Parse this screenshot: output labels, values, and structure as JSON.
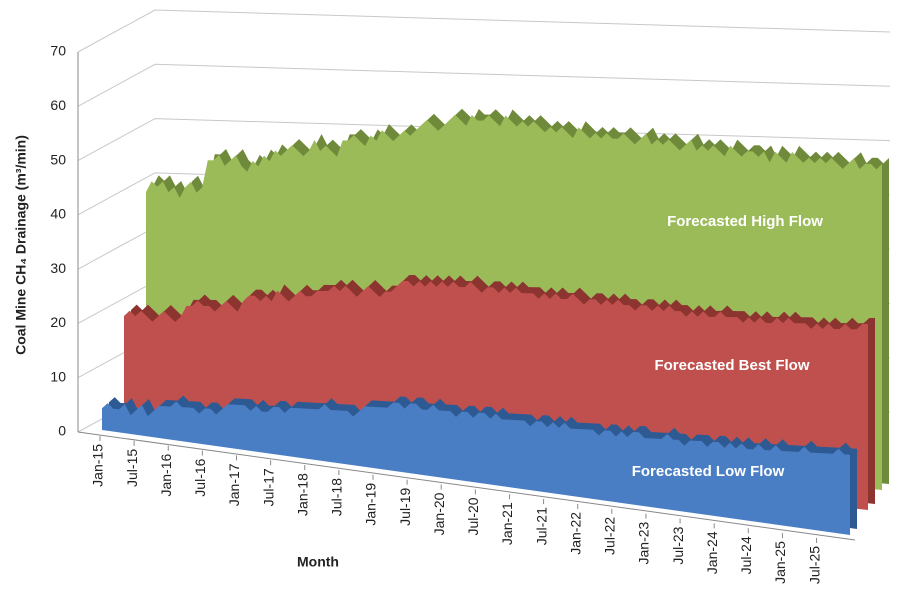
{
  "chart_data": {
    "type": "area3d",
    "y_label": "Coal Mine CH₄ Drainage (m³/min)",
    "x_label": "Month",
    "ylim": [
      0,
      70
    ],
    "yticks": [
      0,
      10,
      20,
      30,
      40,
      50,
      60,
      70
    ],
    "grid": true,
    "categories": [
      "Jan-15",
      null,
      null,
      null,
      null,
      null,
      "Jul-15",
      null,
      null,
      null,
      null,
      null,
      "Jan-16",
      null,
      null,
      null,
      null,
      null,
      "Jul-16",
      null,
      null,
      null,
      null,
      null,
      "Jan-17",
      null,
      null,
      null,
      null,
      null,
      "Jul-17",
      null,
      null,
      null,
      null,
      null,
      "Jan-18",
      null,
      null,
      null,
      null,
      null,
      "Jul-18",
      null,
      null,
      null,
      null,
      null,
      "Jan-19",
      null,
      null,
      null,
      null,
      null,
      "Jul-19",
      null,
      null,
      null,
      null,
      null,
      "Jan-20",
      null,
      null,
      null,
      null,
      null,
      "Jul-20",
      null,
      null,
      null,
      null,
      null,
      "Jan-21",
      null,
      null,
      null,
      null,
      null,
      "Jul-21",
      null,
      null,
      null,
      null,
      null,
      "Jan-22",
      null,
      null,
      null,
      null,
      null,
      "Jul-22",
      null,
      null,
      null,
      null,
      null,
      "Jan-23",
      null,
      null,
      null,
      null,
      null,
      "Jul-23",
      null,
      null,
      null,
      null,
      null,
      "Jan-24",
      null,
      null,
      null,
      null,
      null,
      "Jul-24",
      null,
      null,
      null,
      null,
      null,
      "Jan-25",
      null,
      null,
      null,
      null,
      null,
      "Jul-25",
      null,
      null,
      null,
      null,
      null
    ],
    "series": [
      {
        "name": "Forecasted Low Flow",
        "color": "#4a7ec4",
        "dark": "#2e5a94",
        "values": [
          4,
          5,
          4,
          4,
          5,
          3,
          4,
          5,
          3,
          4,
          5,
          5,
          5,
          6,
          5,
          5,
          5,
          4,
          5,
          5,
          4,
          5,
          6,
          6,
          6,
          6,
          5,
          6,
          5,
          5,
          6,
          6,
          5,
          6,
          6,
          6,
          6,
          6,
          6,
          7,
          6,
          6,
          6,
          6,
          5,
          6,
          7,
          7,
          7,
          7,
          7,
          8,
          8,
          7,
          8,
          8,
          7,
          7,
          8,
          7,
          7,
          7,
          6,
          7,
          7,
          6,
          7,
          7,
          6,
          7,
          6,
          6,
          6,
          6,
          6,
          5,
          6,
          6,
          5,
          6,
          5,
          6,
          5,
          5,
          5,
          5,
          5,
          4,
          5,
          5,
          4,
          5,
          4,
          5,
          5,
          4,
          4,
          4,
          4,
          5,
          4,
          4,
          3,
          4,
          4,
          4,
          3,
          4,
          4,
          3,
          4,
          3,
          4,
          3,
          3,
          4,
          3,
          3,
          4,
          3,
          3,
          3,
          3,
          4,
          3,
          3,
          3,
          3,
          3,
          4,
          3,
          3
        ]
      },
      {
        "name": "Forecasted Best Flow",
        "color": "#c0504d",
        "dark": "#8c3430",
        "values": [
          21,
          22,
          21,
          22,
          21,
          20,
          21,
          22,
          21,
          20,
          21,
          23,
          23,
          24,
          23,
          23,
          22,
          23,
          24,
          23,
          22,
          24,
          25,
          25,
          24,
          25,
          24,
          26,
          25,
          24,
          25,
          26,
          25,
          25,
          26,
          26,
          26,
          27,
          26,
          27,
          26,
          25,
          26,
          27,
          26,
          25,
          26,
          26,
          27,
          28,
          28,
          27,
          28,
          27,
          28,
          27,
          28,
          27,
          28,
          27,
          27,
          28,
          27,
          26,
          27,
          27,
          26,
          27,
          26,
          27,
          26,
          26,
          26,
          25,
          26,
          25,
          26,
          25,
          25,
          26,
          25,
          24,
          25,
          25,
          24,
          25,
          24,
          25,
          24,
          24,
          23,
          24,
          24,
          23,
          24,
          23,
          24,
          23,
          23,
          22,
          23,
          22,
          23,
          22,
          22,
          23,
          22,
          22,
          22,
          21,
          22,
          21,
          22,
          21,
          21,
          22,
          21,
          22,
          21,
          21,
          21,
          20,
          21,
          20,
          21,
          20,
          20,
          21,
          20,
          20,
          21,
          21
        ]
      },
      {
        "name": "Forecasted High Flow",
        "color": "#9bbb59",
        "dark": "#6f8a3a",
        "values": [
          42,
          44,
          43,
          44,
          42,
          43,
          41,
          43,
          44,
          42,
          43,
          48,
          48,
          49,
          47,
          48,
          49,
          47,
          46,
          48,
          47,
          49,
          48,
          50,
          49,
          50,
          51,
          50,
          49,
          50,
          52,
          50,
          51,
          50,
          49,
          52,
          52,
          53,
          52,
          51,
          53,
          52,
          54,
          53,
          52,
          53,
          54,
          53,
          54,
          55,
          56,
          55,
          54,
          55,
          56,
          57,
          56,
          55,
          57,
          56,
          56,
          57,
          56,
          55,
          57,
          56,
          55,
          56,
          55,
          56,
          55,
          54,
          55,
          54,
          55,
          54,
          53,
          55,
          54,
          53,
          54,
          53,
          54,
          53,
          53,
          54,
          53,
          52,
          53,
          54,
          52,
          53,
          52,
          53,
          52,
          51,
          52,
          53,
          51,
          52,
          51,
          52,
          51,
          50,
          52,
          51,
          50,
          51,
          51,
          50,
          51,
          49,
          51,
          50,
          49,
          51,
          50,
          49,
          50,
          49,
          50,
          49,
          50,
          49,
          48,
          49,
          50,
          48,
          49,
          49,
          48,
          49
        ]
      }
    ]
  }
}
